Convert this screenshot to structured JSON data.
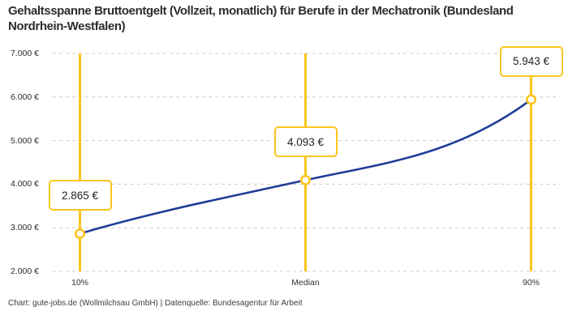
{
  "title": "Gehaltsspanne Bruttoentgelt (Vollzeit, monatlich) für Berufe in der Mechatronik (Bundesland Nordrhein-Westfalen)",
  "footer": "Chart: gute-jobs.de (Wollmilchsau GmbH) | Datenquelle: Bundesagentur für Arbeit",
  "chart_data": {
    "type": "line",
    "title": "Gehaltsspanne Bruttoentgelt (Vollzeit, monatlich) für Berufe in der Mechatronik (Bundesland Nordrhein-Westfalen)",
    "categories": [
      "10%",
      "Median",
      "90%"
    ],
    "values": [
      2865,
      4093,
      5943
    ],
    "value_labels": [
      "2.865 €",
      "4.093 €",
      "5.943 €"
    ],
    "xlabel": "",
    "ylabel": "",
    "ylim": [
      2000,
      7000
    ],
    "ytick_values": [
      2000,
      3000,
      4000,
      5000,
      6000,
      7000
    ],
    "ytick_labels": [
      "2.000 €",
      "3.000 €",
      "4.000 €",
      "5.000 €",
      "6.000 €",
      "7.000 €"
    ],
    "grid": "horizontal-dashed",
    "legend": "none",
    "colors": {
      "line": "#1f3d99",
      "marker": "#fcc41d",
      "marker_fill": "#ffffff",
      "gridline": "#cccccc",
      "label_box_border": "#fcc41d",
      "label_box_bg": "#ffffff"
    }
  }
}
